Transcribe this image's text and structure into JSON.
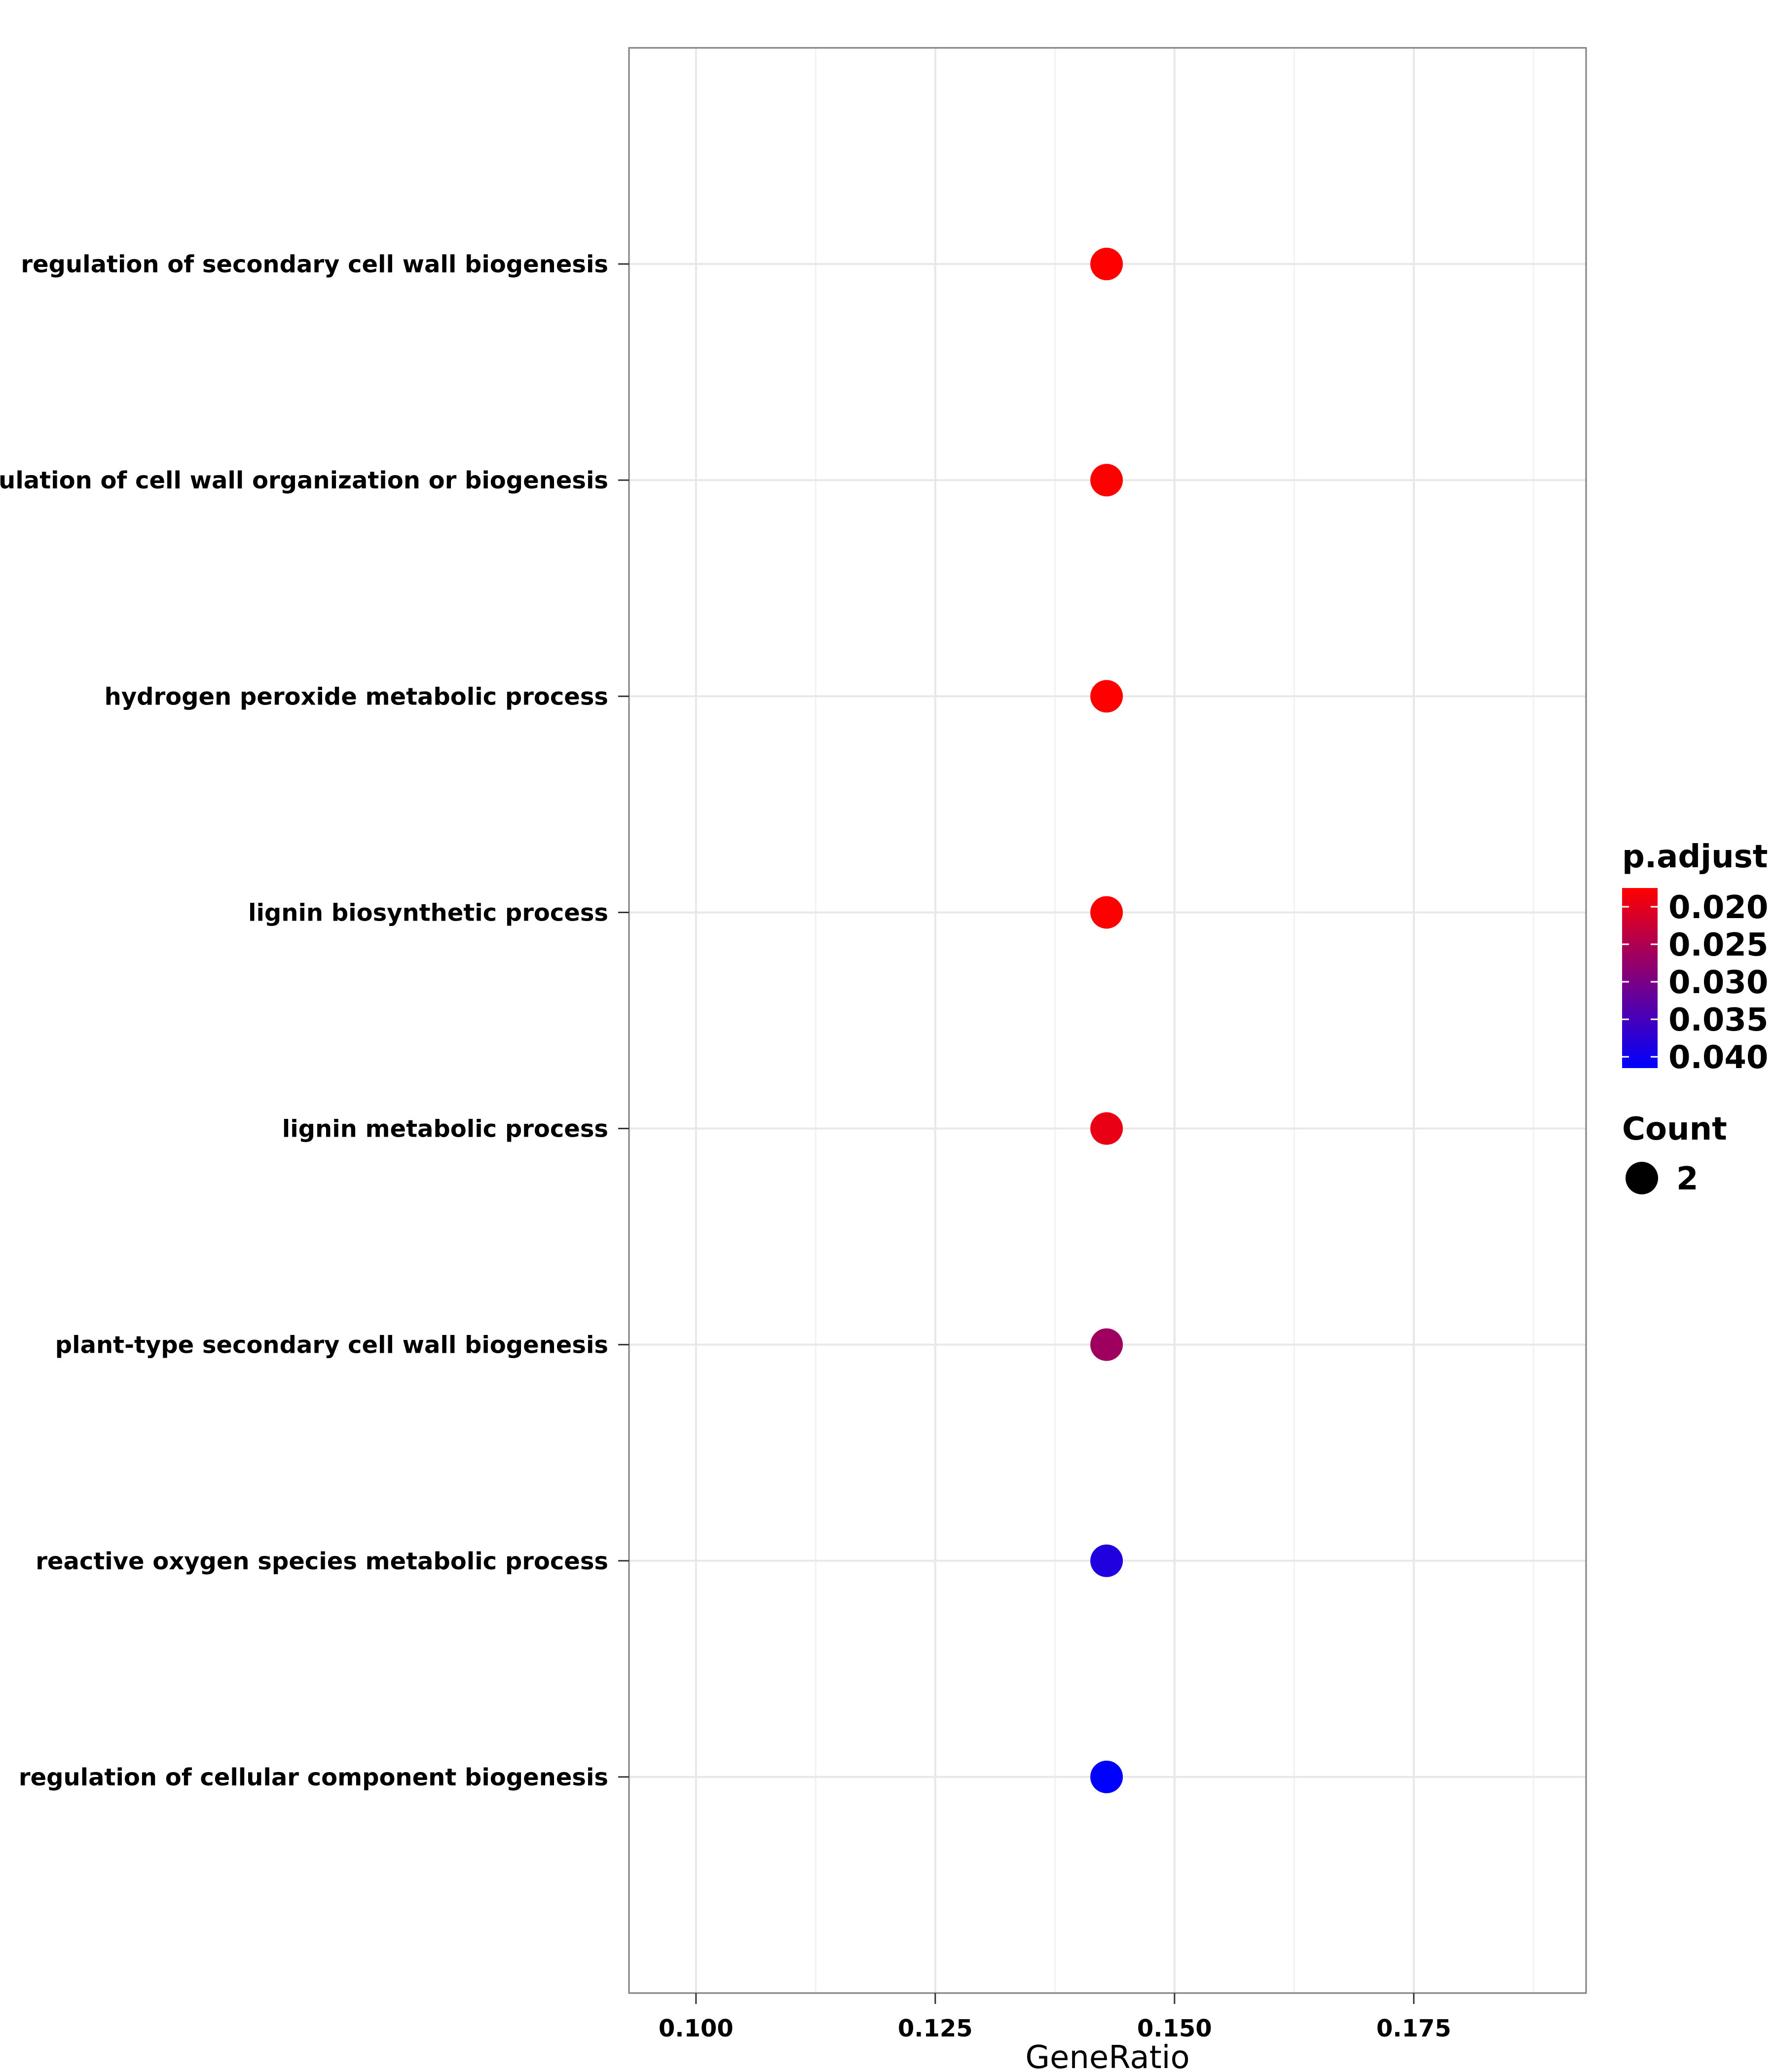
{
  "chart_data": {
    "type": "scatter",
    "xlabel": "GeneRatio",
    "ylabel": "",
    "xlim": [
      0.093,
      0.193
    ],
    "x_ticks": [
      0.1,
      0.125,
      0.15,
      0.175
    ],
    "x_tick_labels": [
      "0.100",
      "0.125",
      "0.150",
      "0.175"
    ],
    "categories": [
      "regulation of secondary cell wall biogenesis",
      "regulation of cell wall organization or biogenesis",
      "hydrogen peroxide metabolic process",
      "lignin biosynthetic process",
      "lignin metabolic process",
      "plant-type secondary cell wall biogenesis",
      "reactive oxygen species metabolic process",
      "regulation of cellular component biogenesis"
    ],
    "gene_ratio": [
      0.1429,
      0.1429,
      0.1429,
      0.1429,
      0.1429,
      0.1429,
      0.1429,
      0.1429
    ],
    "count": [
      2,
      2,
      2,
      2,
      2,
      2,
      2,
      2
    ],
    "p_adjust": [
      0.0175,
      0.0175,
      0.0175,
      0.0175,
      0.0195,
      0.0265,
      0.0385,
      0.0415
    ],
    "grid": true,
    "color_legend": {
      "title": "p.adjust",
      "labels": [
        "0.020",
        "0.025",
        "0.030",
        "0.035",
        "0.040"
      ],
      "values": [
        0.02,
        0.025,
        0.03,
        0.035,
        0.04
      ],
      "range": [
        0.0175,
        0.0415
      ],
      "low_color": "#ff0000",
      "high_color": "#0000ff"
    },
    "size_legend": {
      "title": "Count",
      "labels": [
        "2"
      ]
    },
    "legend_position": "right"
  }
}
